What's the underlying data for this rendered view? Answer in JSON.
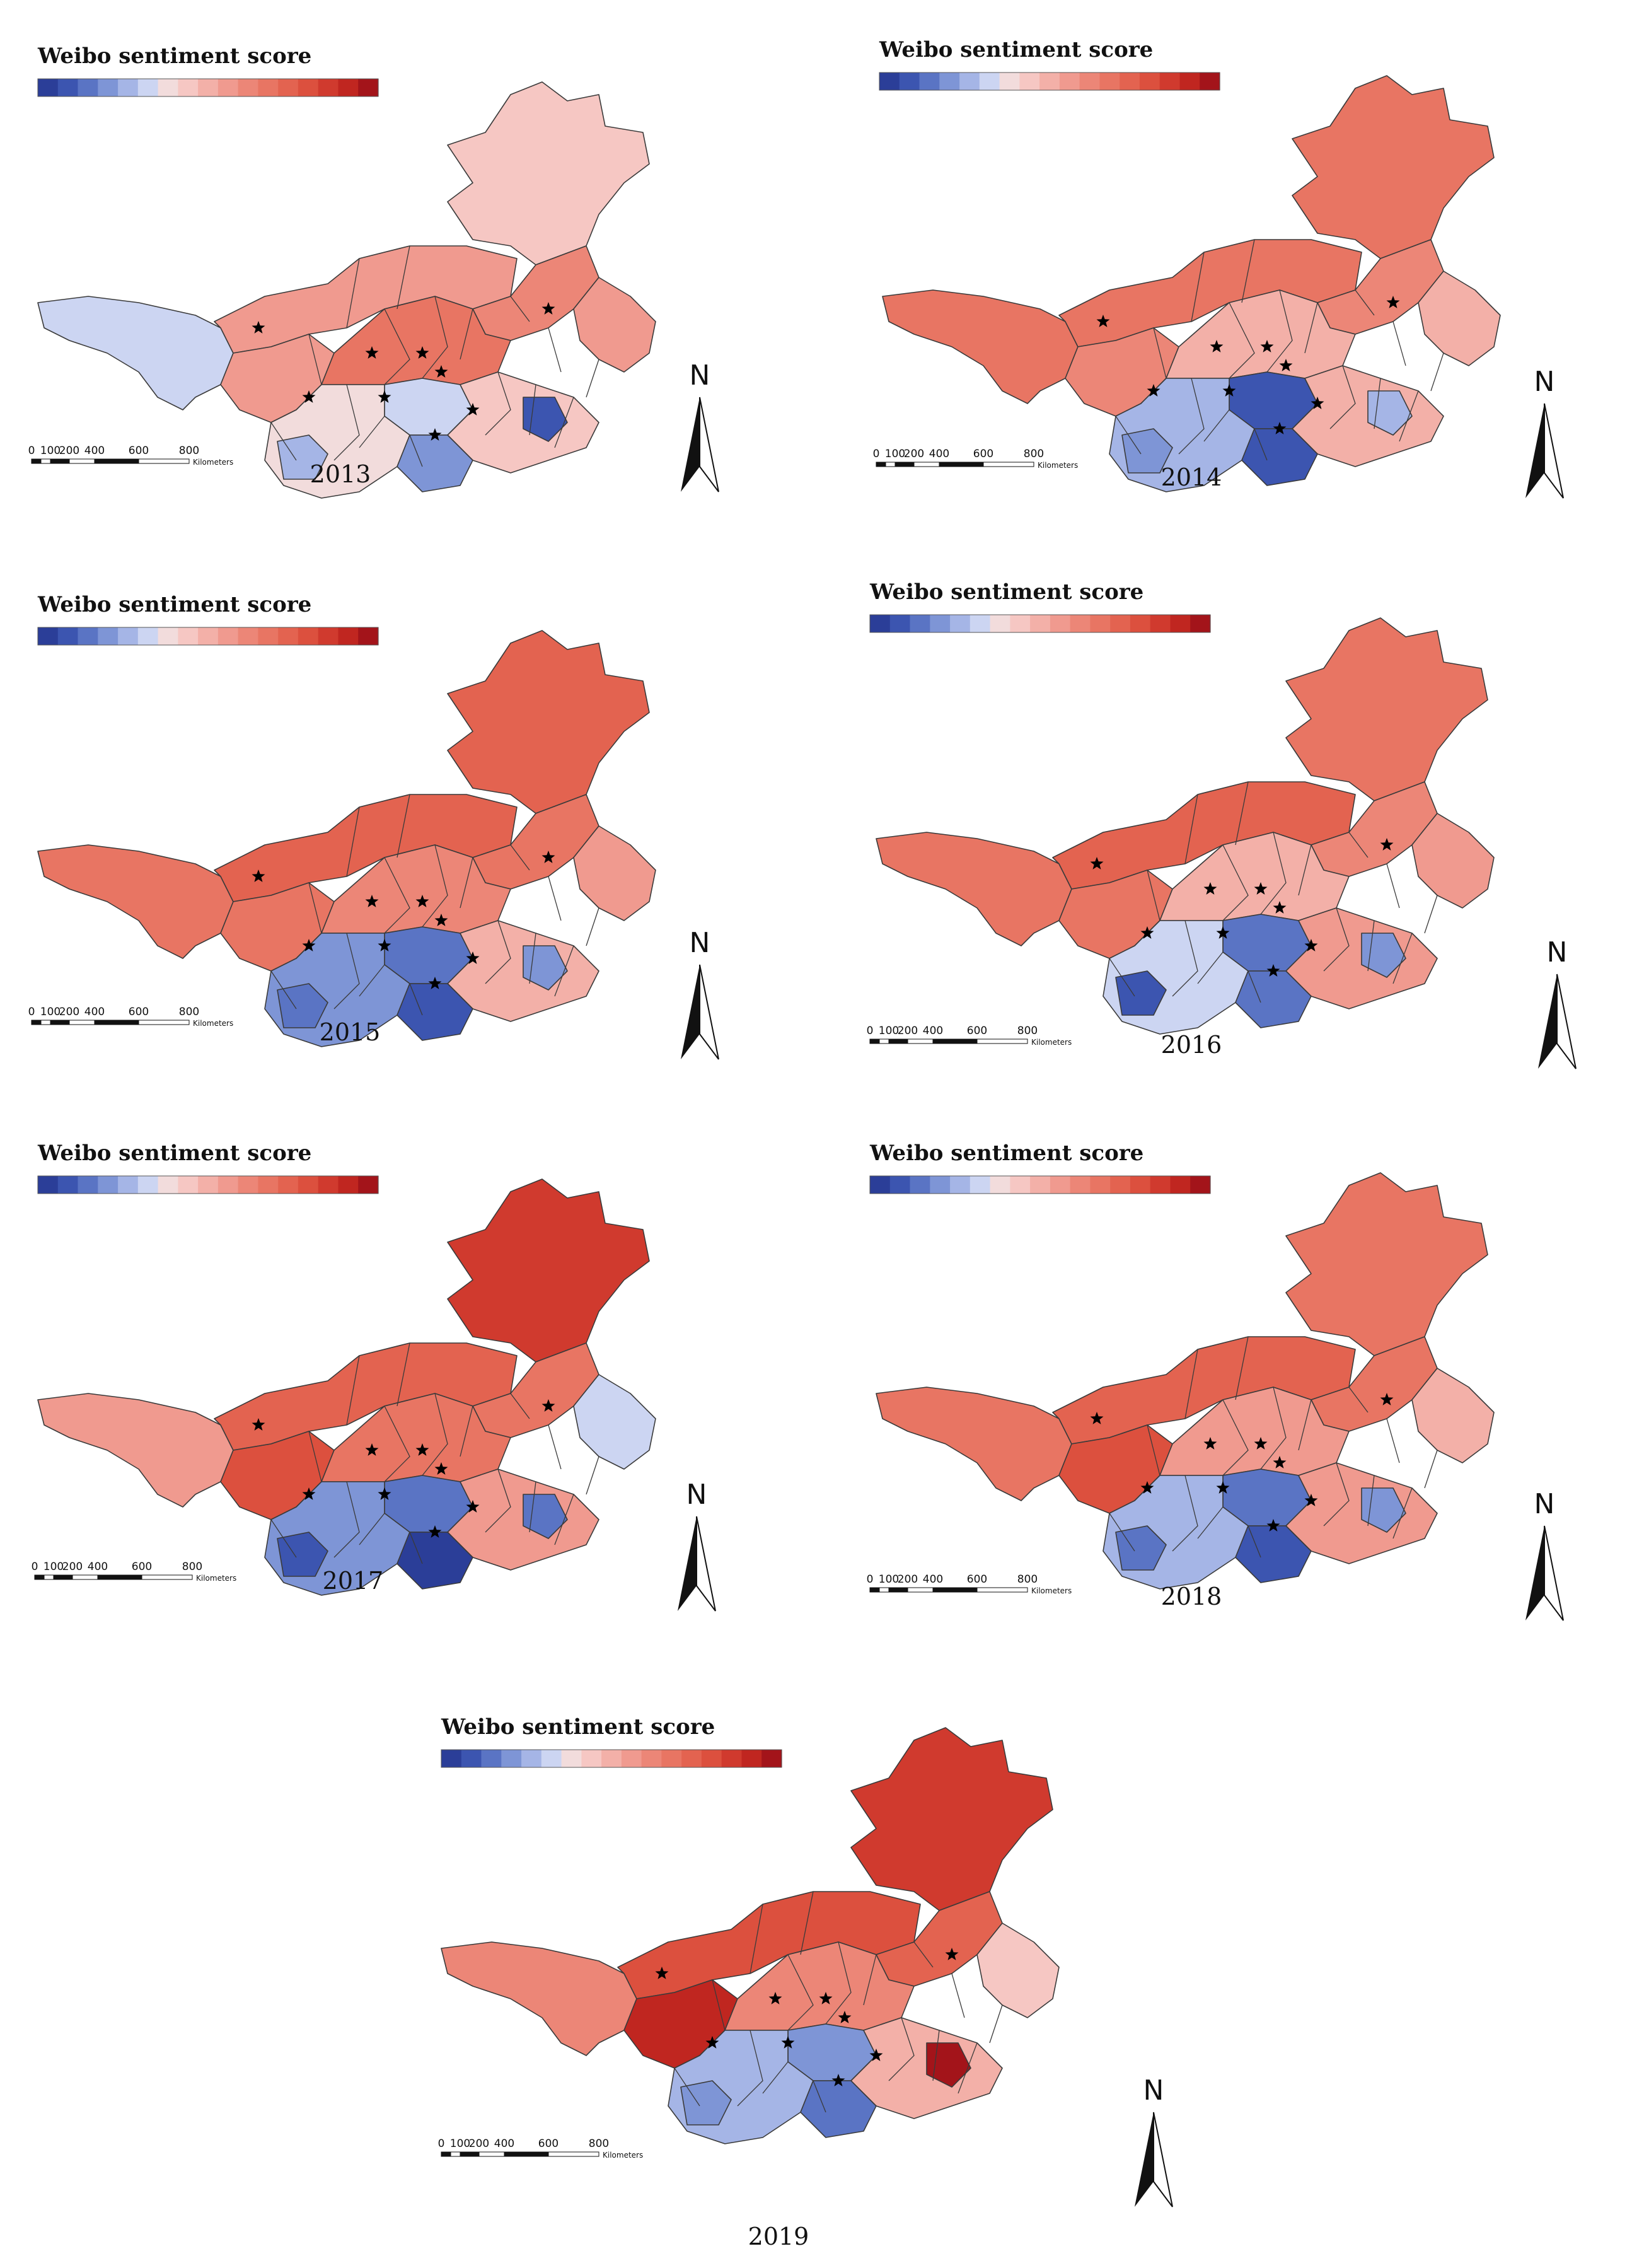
{
  "legend_title": "Weibo sentiment score",
  "palette": [
    "#2b3e98",
    "#3c55b0",
    "#5a74c4",
    "#7e95d6",
    "#a5b5e6",
    "#ccd5f2",
    "#f2dcdc",
    "#f6c7c3",
    "#f3b0a8",
    "#f09a8f",
    "#ec8677",
    "#e87563",
    "#e36350",
    "#dc503e",
    "#d03a2e",
    "#c02620",
    "#a3141a"
  ],
  "scale_bar": {
    "ticks": [
      "0",
      "100",
      "200",
      "400",
      "600",
      "800"
    ],
    "unit": "Kilometers"
  },
  "north_label": "N",
  "panels": [
    {
      "year": "2013",
      "colors": {
        "north": 7,
        "west": 5,
        "band1": 9,
        "band2": 9,
        "band3": 10,
        "bandE": 9,
        "mid": 11,
        "center": 5,
        "south": 6,
        "east": 7,
        "blue1": 3,
        "blue2": 4,
        "blue3": 1
      }
    },
    {
      "year": "2014",
      "colors": {
        "north": 11,
        "west": 11,
        "band1": 11,
        "band2": 10,
        "band3": 10,
        "bandE": 8,
        "mid": 8,
        "center": 1,
        "south": 4,
        "east": 8,
        "blue1": 1,
        "blue2": 3,
        "blue3": 4
      }
    },
    {
      "year": "2015",
      "colors": {
        "north": 12,
        "west": 11,
        "band1": 12,
        "band2": 11,
        "band3": 11,
        "bandE": 9,
        "mid": 10,
        "center": 2,
        "south": 3,
        "east": 8,
        "blue1": 1,
        "blue2": 2,
        "blue3": 3
      }
    },
    {
      "year": "2016",
      "colors": {
        "north": 11,
        "west": 11,
        "band1": 12,
        "band2": 11,
        "band3": 10,
        "bandE": 9,
        "mid": 8,
        "center": 2,
        "south": 5,
        "east": 9,
        "blue1": 2,
        "blue2": 1,
        "blue3": 3
      }
    },
    {
      "year": "2017",
      "colors": {
        "north": 14,
        "west": 9,
        "band1": 12,
        "band2": 13,
        "band3": 11,
        "bandE": 5,
        "mid": 11,
        "center": 2,
        "south": 3,
        "east": 9,
        "blue1": 0,
        "blue2": 1,
        "blue3": 2
      }
    },
    {
      "year": "2018",
      "colors": {
        "north": 11,
        "west": 11,
        "band1": 12,
        "band2": 13,
        "band3": 11,
        "bandE": 8,
        "mid": 9,
        "center": 2,
        "south": 4,
        "east": 9,
        "blue1": 1,
        "blue2": 2,
        "blue3": 3
      }
    },
    {
      "year": "2019",
      "colors": {
        "north": 14,
        "west": 10,
        "band1": 13,
        "band2": 15,
        "band3": 12,
        "bandE": 7,
        "mid": 10,
        "center": 3,
        "south": 4,
        "east": 8,
        "blue1": 2,
        "blue2": 3,
        "blue3": 16
      }
    }
  ]
}
